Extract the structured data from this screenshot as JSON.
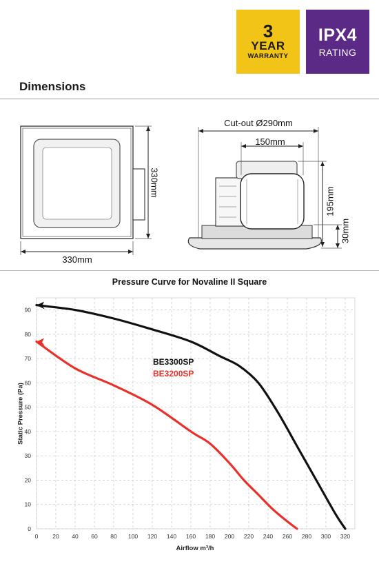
{
  "badges": {
    "warranty": {
      "number": "3",
      "line1": "YEAR",
      "line2": "WARRANTY",
      "color": "#f2c418"
    },
    "rating": {
      "line1": "IPX4",
      "line2": "RATING",
      "color": "#5b2a86"
    }
  },
  "dimensions": {
    "title": "Dimensions",
    "front_height": "330mm",
    "front_width": "330mm",
    "cutout": "Cut-out Ø290mm",
    "duct": "150mm",
    "total_height": "195mm",
    "flange_height": "30mm"
  },
  "chart_data": {
    "type": "line",
    "title": "Pressure Curve for Novaline II Square",
    "xlabel": "Airflow m³/h",
    "ylabel": "Static Pressure (Pa)",
    "xlim": [
      0,
      330
    ],
    "ylim": [
      0,
      95
    ],
    "x_ticks": [
      0,
      20,
      40,
      60,
      80,
      100,
      120,
      140,
      160,
      180,
      200,
      220,
      240,
      260,
      280,
      300,
      320
    ],
    "y_ticks": [
      0,
      10,
      20,
      30,
      40,
      50,
      60,
      70,
      80,
      90
    ],
    "grid": true,
    "series": [
      {
        "name": "BE3300SP",
        "color": "#111111",
        "x": [
          0,
          40,
          80,
          120,
          160,
          190,
          210,
          230,
          250,
          270,
          290,
          310,
          320
        ],
        "y": [
          92,
          90,
          86.5,
          82,
          77,
          71,
          67,
          60,
          48,
          34,
          20,
          6,
          0
        ]
      },
      {
        "name": "BE3200SP",
        "color": "#e8312a",
        "x": [
          0,
          40,
          80,
          120,
          160,
          180,
          200,
          215,
          230,
          245,
          260,
          270
        ],
        "y": [
          77,
          66,
          59,
          51,
          40,
          35,
          27,
          20,
          14,
          8,
          3,
          0
        ]
      }
    ]
  }
}
